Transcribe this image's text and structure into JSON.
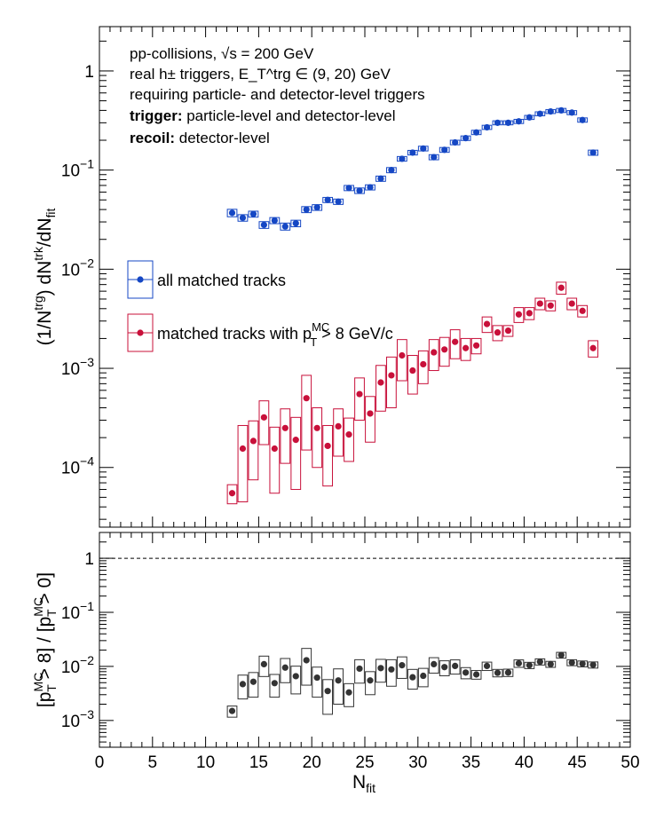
{
  "chart_data": [
    {
      "type": "scatter",
      "panel": "upper",
      "ylabel": "(1/N^trg) dN^trk/dN_fit",
      "yscale": "log",
      "ylim": [
        2.5e-05,
        2.8
      ],
      "xlim": [
        0,
        50
      ],
      "y_tick_labels": [
        "10^-4",
        "10^-3",
        "10^-2",
        "10^-1",
        "1"
      ],
      "annotations": {
        "line1": "pp-collisions, √s = 200 GeV",
        "line2": "real h± triggers, E_T^trg ∈ (9, 20) GeV",
        "line3": "requiring particle- and detector-level triggers",
        "line4_bold": "trigger:",
        "line4_rest": " particle-level and detector-level",
        "line5_bold": "recoil:",
        "line5_rest": " detector-level"
      },
      "legend": {
        "placement": "middle-left",
        "entries": [
          "all matched tracks",
          "matched tracks with p_T^MC > 8 GeV/c"
        ]
      },
      "series": [
        {
          "name": "all matched tracks",
          "color": "#1547c4",
          "points": [
            [
              12.5,
              0.037,
              0.0032
            ],
            [
              13.5,
              0.033,
              0.0025
            ],
            [
              14.5,
              0.036,
              0.0025
            ],
            [
              15.5,
              0.028,
              0.0022
            ],
            [
              16.5,
              0.031,
              0.0022
            ],
            [
              17.5,
              0.027,
              0.0022
            ],
            [
              18.5,
              0.029,
              0.0022
            ],
            [
              19.5,
              0.04,
              0.0028
            ],
            [
              20.5,
              0.042,
              0.0028
            ],
            [
              21.5,
              0.05,
              0.003
            ],
            [
              22.5,
              0.048,
              0.003
            ],
            [
              23.5,
              0.066,
              0.004
            ],
            [
              24.5,
              0.062,
              0.004
            ],
            [
              25.5,
              0.067,
              0.004
            ],
            [
              26.5,
              0.082,
              0.005
            ],
            [
              27.5,
              0.1,
              0.006
            ],
            [
              28.5,
              0.13,
              0.007
            ],
            [
              29.5,
              0.15,
              0.008
            ],
            [
              30.5,
              0.165,
              0.009
            ],
            [
              31.5,
              0.135,
              0.008
            ],
            [
              32.5,
              0.16,
              0.009
            ],
            [
              33.5,
              0.19,
              0.01
            ],
            [
              34.5,
              0.21,
              0.011
            ],
            [
              35.5,
              0.24,
              0.012
            ],
            [
              36.5,
              0.27,
              0.013
            ],
            [
              37.5,
              0.3,
              0.014
            ],
            [
              38.5,
              0.3,
              0.014
            ],
            [
              39.5,
              0.31,
              0.015
            ],
            [
              40.5,
              0.34,
              0.016
            ],
            [
              41.5,
              0.37,
              0.017
            ],
            [
              42.5,
              0.39,
              0.018
            ],
            [
              43.5,
              0.4,
              0.019
            ],
            [
              44.5,
              0.38,
              0.018
            ],
            [
              45.5,
              0.32,
              0.016
            ],
            [
              46.5,
              0.15,
              0.009
            ]
          ]
        },
        {
          "name": "matched tracks with p_T^MC > 8 GeV/c",
          "color": "#c8103a",
          "points": [
            [
              12.5,
              5.5e-05,
              1.2e-05
            ],
            [
              13.5,
              0.000155,
              0.00011
            ],
            [
              14.5,
              0.000185,
              0.00011
            ],
            [
              15.5,
              0.00032,
              0.00015
            ],
            [
              16.5,
              0.000155,
              0.0001
            ],
            [
              17.5,
              0.00025,
              0.00014
            ],
            [
              18.5,
              0.00019,
              0.00013
            ],
            [
              19.5,
              0.0005,
              0.00035
            ],
            [
              20.5,
              0.00025,
              0.00015
            ],
            [
              21.5,
              0.000165,
              0.0001
            ],
            [
              22.5,
              0.00026,
              0.00013
            ],
            [
              23.5,
              0.000215,
              0.0001
            ],
            [
              24.5,
              0.00055,
              0.00025
            ],
            [
              25.5,
              0.00035,
              0.00017
            ],
            [
              26.5,
              0.00072,
              0.00035
            ],
            [
              27.5,
              0.00085,
              0.00045
            ],
            [
              28.5,
              0.00135,
              0.0006
            ],
            [
              29.5,
              0.00095,
              0.0004
            ],
            [
              30.5,
              0.0011,
              0.0004
            ],
            [
              31.5,
              0.00145,
              0.0005
            ],
            [
              32.5,
              0.00155,
              0.0005
            ],
            [
              33.5,
              0.00185,
              0.0006
            ],
            [
              34.5,
              0.0016,
              0.0004
            ],
            [
              35.5,
              0.0017,
              0.0003
            ],
            [
              36.5,
              0.0028,
              0.0005
            ],
            [
              37.5,
              0.0023,
              0.0004
            ],
            [
              38.5,
              0.0024,
              0.0003
            ],
            [
              39.5,
              0.0035,
              0.0006
            ],
            [
              40.5,
              0.0036,
              0.0005
            ],
            [
              41.5,
              0.0045,
              0.0006
            ],
            [
              42.5,
              0.0043,
              0.0005
            ],
            [
              43.5,
              0.0065,
              0.0009
            ],
            [
              44.5,
              0.0045,
              0.0006
            ],
            [
              45.5,
              0.0038,
              0.0005
            ],
            [
              46.5,
              0.0016,
              0.0003
            ]
          ]
        }
      ]
    },
    {
      "type": "scatter",
      "panel": "lower",
      "xlabel": "N_fit",
      "ylabel": "[p_T^MC > 8] / [p_T^MC > 0]",
      "yscale": "log",
      "ylim": [
        0.00032,
        3
      ],
      "xlim": [
        0,
        50
      ],
      "x_tick_labels": [
        "0",
        "5",
        "10",
        "15",
        "20",
        "25",
        "30",
        "35",
        "40",
        "45",
        "50"
      ],
      "y_tick_labels": [
        "10^-3",
        "10^-2",
        "10^-1",
        "1"
      ],
      "reference_line": {
        "y": 1,
        "style": "dashed"
      },
      "series": [
        {
          "name": "",
          "color": "#333333",
          "points": [
            [
              12.5,
              0.0015,
              0.00035
            ],
            [
              13.5,
              0.0047,
              0.0022
            ],
            [
              14.5,
              0.0052,
              0.0025
            ],
            [
              15.5,
              0.011,
              0.0045
            ],
            [
              16.5,
              0.0049,
              0.0022
            ],
            [
              17.5,
              0.0095,
              0.0045
            ],
            [
              18.5,
              0.0066,
              0.0035
            ],
            [
              19.5,
              0.013,
              0.0085
            ],
            [
              20.5,
              0.0062,
              0.0035
            ],
            [
              21.5,
              0.0035,
              0.0022
            ],
            [
              22.5,
              0.0055,
              0.0035
            ],
            [
              23.5,
              0.0033,
              0.0015
            ],
            [
              24.5,
              0.0091,
              0.0042
            ],
            [
              25.5,
              0.0055,
              0.0025
            ],
            [
              26.5,
              0.0093,
              0.0042
            ],
            [
              27.5,
              0.0088,
              0.0045
            ],
            [
              28.5,
              0.0105,
              0.0045
            ],
            [
              29.5,
              0.0063,
              0.0025
            ],
            [
              30.5,
              0.0067,
              0.0025
            ],
            [
              31.5,
              0.011,
              0.0035
            ],
            [
              32.5,
              0.0097,
              0.003
            ],
            [
              33.5,
              0.0102,
              0.003
            ],
            [
              34.5,
              0.0077,
              0.0018
            ],
            [
              35.5,
              0.0071,
              0.0013
            ],
            [
              36.5,
              0.0102,
              0.0018
            ],
            [
              37.5,
              0.0076,
              0.0012
            ],
            [
              38.5,
              0.0077,
              0.0012
            ],
            [
              39.5,
              0.0114,
              0.0018
            ],
            [
              40.5,
              0.0105,
              0.0014
            ],
            [
              41.5,
              0.0122,
              0.0016
            ],
            [
              42.5,
              0.011,
              0.0014
            ],
            [
              43.5,
              0.0162,
              0.002
            ],
            [
              44.5,
              0.0118,
              0.0015
            ],
            [
              45.5,
              0.0112,
              0.0014
            ],
            [
              46.5,
              0.0107,
              0.0014
            ]
          ]
        }
      ]
    }
  ]
}
